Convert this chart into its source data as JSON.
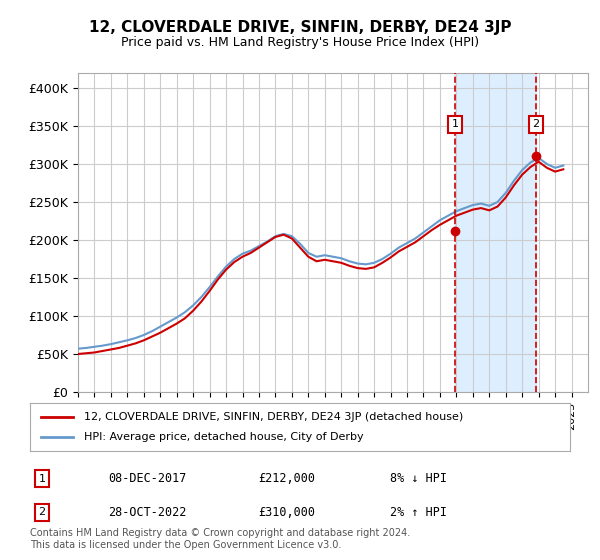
{
  "title": "12, CLOVERDALE DRIVE, SINFIN, DERBY, DE24 3JP",
  "subtitle": "Price paid vs. HM Land Registry's House Price Index (HPI)",
  "ylabel": "",
  "ylim": [
    0,
    420000
  ],
  "yticks": [
    0,
    50000,
    100000,
    150000,
    200000,
    250000,
    300000,
    350000,
    400000
  ],
  "ytick_labels": [
    "£0",
    "£50K",
    "£100K",
    "£150K",
    "£200K",
    "£250K",
    "£300K",
    "£350K",
    "£400K"
  ],
  "xmin": 1995.0,
  "xmax": 2026.0,
  "background_color": "#ffffff",
  "plot_bg_color": "#ffffff",
  "grid_color": "#cccccc",
  "hpi_color": "#6699cc",
  "price_color": "#cc0000",
  "vline_color": "#cc0000",
  "shade_color": "#ddeeff",
  "marker1_x": 2017.92,
  "marker2_x": 2022.83,
  "marker1_y": 212000,
  "marker2_y": 310000,
  "legend_label1": "12, CLOVERDALE DRIVE, SINFIN, DERBY, DE24 3JP (detached house)",
  "legend_label2": "HPI: Average price, detached house, City of Derby",
  "annotation1_num": "1",
  "annotation1_date": "08-DEC-2017",
  "annotation1_price": "£212,000",
  "annotation1_hpi": "8% ↓ HPI",
  "annotation2_num": "2",
  "annotation2_date": "28-OCT-2022",
  "annotation2_price": "£310,000",
  "annotation2_hpi": "2% ↑ HPI",
  "footer": "Contains HM Land Registry data © Crown copyright and database right 2024.\nThis data is licensed under the Open Government Licence v3.0.",
  "hpi_years": [
    1995.0,
    1995.5,
    1996.0,
    1996.5,
    1997.0,
    1997.5,
    1998.0,
    1998.5,
    1999.0,
    1999.5,
    2000.0,
    2000.5,
    2001.0,
    2001.5,
    2002.0,
    2002.5,
    2003.0,
    2003.5,
    2004.0,
    2004.5,
    2005.0,
    2005.5,
    2006.0,
    2006.5,
    2007.0,
    2007.5,
    2008.0,
    2008.5,
    2009.0,
    2009.5,
    2010.0,
    2010.5,
    2011.0,
    2011.5,
    2012.0,
    2012.5,
    2013.0,
    2013.5,
    2014.0,
    2014.5,
    2015.0,
    2015.5,
    2016.0,
    2016.5,
    2017.0,
    2017.5,
    2018.0,
    2018.5,
    2019.0,
    2019.5,
    2020.0,
    2020.5,
    2021.0,
    2021.5,
    2022.0,
    2022.5,
    2023.0,
    2023.5,
    2024.0,
    2024.5
  ],
  "hpi_values": [
    57000,
    58000,
    59500,
    61000,
    63000,
    65500,
    68000,
    71000,
    75000,
    80000,
    86000,
    92000,
    98000,
    105000,
    114000,
    125000,
    138000,
    152000,
    165000,
    175000,
    182000,
    186000,
    192000,
    198000,
    205000,
    208000,
    205000,
    195000,
    183000,
    178000,
    180000,
    178000,
    176000,
    172000,
    169000,
    168000,
    170000,
    175000,
    182000,
    190000,
    196000,
    202000,
    210000,
    218000,
    226000,
    232000,
    238000,
    242000,
    246000,
    248000,
    245000,
    250000,
    262000,
    278000,
    292000,
    302000,
    308000,
    300000,
    295000,
    298000
  ],
  "price_years": [
    1995.0,
    1995.5,
    1996.0,
    1996.5,
    1997.0,
    1997.5,
    1998.0,
    1998.5,
    1999.0,
    1999.5,
    2000.0,
    2000.5,
    2001.0,
    2001.5,
    2002.0,
    2002.5,
    2003.0,
    2003.5,
    2004.0,
    2004.5,
    2005.0,
    2005.5,
    2006.0,
    2006.5,
    2007.0,
    2007.5,
    2008.0,
    2008.5,
    2009.0,
    2009.5,
    2010.0,
    2010.5,
    2011.0,
    2011.5,
    2012.0,
    2012.5,
    2013.0,
    2013.5,
    2014.0,
    2014.5,
    2015.0,
    2015.5,
    2016.0,
    2016.5,
    2017.0,
    2017.5,
    2018.0,
    2018.5,
    2019.0,
    2019.5,
    2020.0,
    2020.5,
    2021.0,
    2021.5,
    2022.0,
    2022.5,
    2023.0,
    2023.5,
    2024.0,
    2024.5
  ],
  "price_values": [
    50000,
    51000,
    52000,
    54000,
    56000,
    58000,
    61000,
    64000,
    68000,
    73000,
    78000,
    84000,
    90000,
    97000,
    107000,
    119000,
    133000,
    148000,
    161000,
    171000,
    178000,
    183000,
    190000,
    197000,
    204000,
    207000,
    202000,
    190000,
    178000,
    172000,
    174000,
    172000,
    170000,
    166000,
    163000,
    162000,
    164000,
    170000,
    177000,
    185000,
    191000,
    197000,
    205000,
    213000,
    220000,
    226000,
    232000,
    236000,
    240000,
    242000,
    239000,
    244000,
    256000,
    272000,
    286000,
    296000,
    303000,
    295000,
    290000,
    293000
  ]
}
